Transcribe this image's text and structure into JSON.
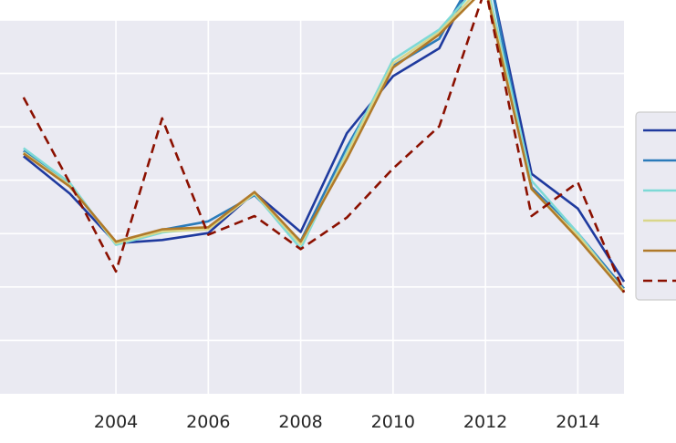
{
  "chart_data": {
    "type": "line",
    "xlabel": "",
    "ylabel": "",
    "x": [
      2002,
      2003,
      2004,
      2005,
      2006,
      2007,
      2008,
      2009,
      2010,
      2011,
      2012,
      2013,
      2014,
      2015
    ],
    "xlim": [
      2001.49,
      2015.0
    ],
    "ylim": [
      0.0,
      7.0
    ],
    "xticks": [
      2004,
      2006,
      2008,
      2010,
      2012,
      2014
    ],
    "xtick_labels": [
      "2004",
      "2006",
      "2008",
      "2010",
      "2012",
      "2014"
    ],
    "yticks": [
      1,
      2,
      3,
      4,
      5,
      6,
      7
    ],
    "grid": true,
    "legend_placement": "right, partially cropped",
    "background": "#eaeaf2",
    "series": [
      {
        "color": "#1f3a9e",
        "dash": "solid",
        "values": [
          4.45,
          3.75,
          2.82,
          2.88,
          3.01,
          3.77,
          3.03,
          4.88,
          5.95,
          6.47,
          8.2,
          4.12,
          3.47,
          2.1
        ]
      },
      {
        "color": "#2b7bba",
        "dash": "solid",
        "values": [
          4.55,
          3.9,
          2.82,
          3.07,
          3.23,
          3.72,
          2.86,
          4.62,
          6.14,
          6.65,
          8.2,
          3.87,
          3.01,
          1.97
        ]
      },
      {
        "color": "#7dd9d6",
        "dash": "solid",
        "values": [
          4.6,
          3.95,
          2.79,
          3.02,
          3.11,
          3.75,
          2.72,
          4.53,
          6.26,
          6.82,
          7.8,
          3.99,
          3.01,
          1.9
        ]
      },
      {
        "color": "#d9d68a",
        "dash": "solid",
        "values": [
          4.52,
          3.9,
          2.82,
          3.04,
          3.08,
          3.76,
          2.8,
          4.48,
          6.19,
          6.77,
          7.7,
          3.83,
          2.96,
          1.93
        ]
      },
      {
        "color": "#b07a2a",
        "dash": "solid",
        "values": [
          4.5,
          3.88,
          2.85,
          3.08,
          3.12,
          3.78,
          2.85,
          4.4,
          6.11,
          6.73,
          7.6,
          3.84,
          2.91,
          1.9
        ]
      },
      {
        "color": "#8b1000",
        "dash": "dashed",
        "values": [
          5.55,
          3.95,
          2.29,
          5.16,
          2.98,
          3.33,
          2.71,
          3.3,
          4.22,
          5.01,
          7.6,
          3.33,
          3.96,
          1.9
        ]
      }
    ]
  }
}
